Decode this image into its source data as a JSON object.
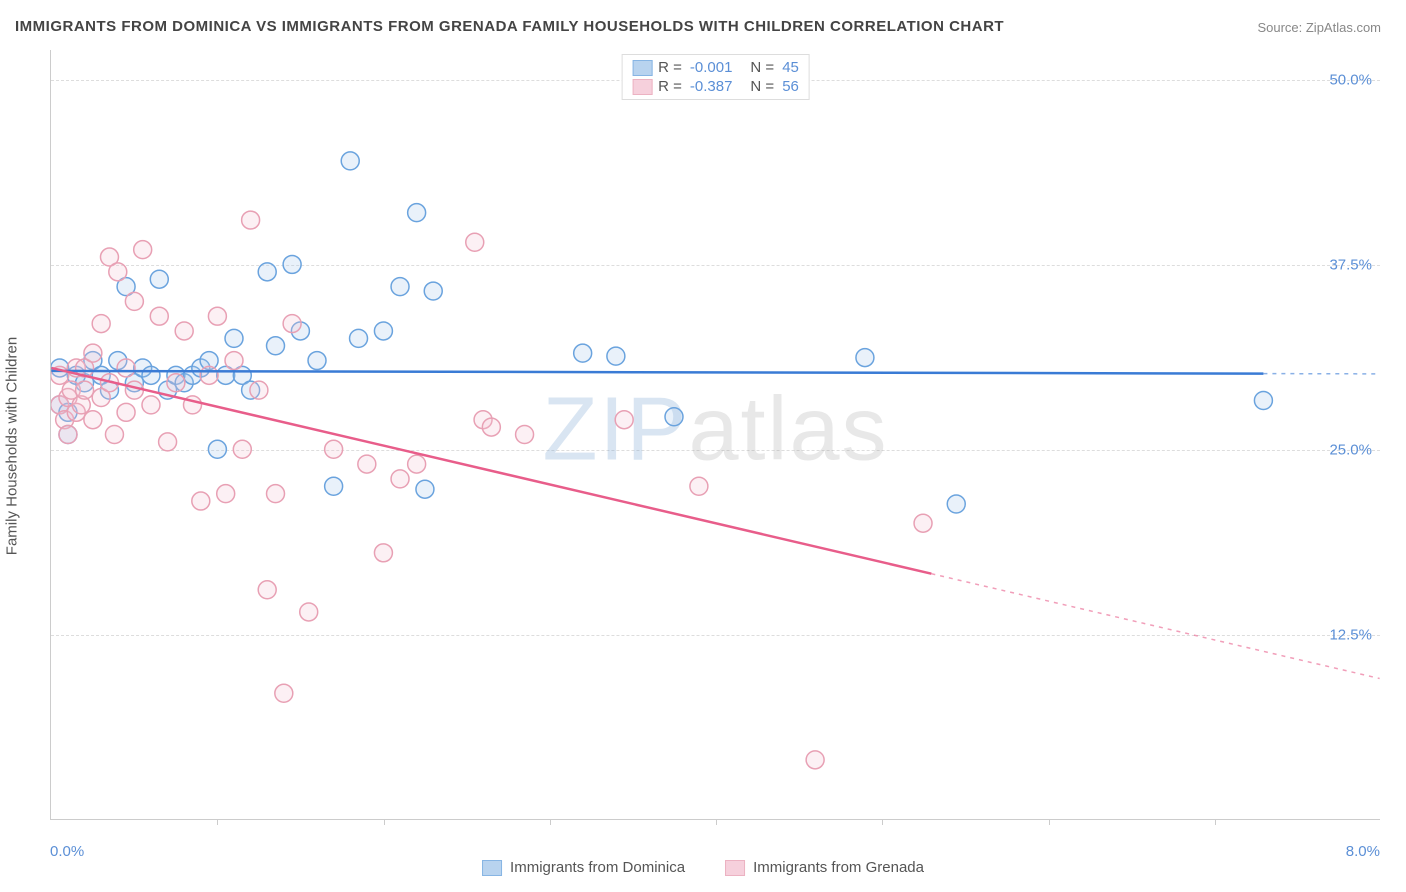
{
  "title": "IMMIGRANTS FROM DOMINICA VS IMMIGRANTS FROM GRENADA FAMILY HOUSEHOLDS WITH CHILDREN CORRELATION CHART",
  "title_fontsize": 15,
  "source": "Source: ZipAtlas.com",
  "watermark": "ZIPatlas",
  "ylabel": "Family Households with Children",
  "chart": {
    "type": "scatter",
    "background_color": "#ffffff",
    "grid_color": "#dddddd",
    "axis_color": "#cccccc",
    "tick_label_color": "#5b8fd6",
    "xlim": [
      0.0,
      8.0
    ],
    "ylim": [
      0.0,
      52.0
    ],
    "yticks": [
      12.5,
      25.0,
      37.5,
      50.0
    ],
    "ytick_labels": [
      "12.5%",
      "25.0%",
      "37.5%",
      "50.0%"
    ],
    "xtick_marks": [
      1.0,
      2.0,
      3.0,
      4.0,
      5.0,
      6.0,
      7.0
    ],
    "x_start_label": "0.0%",
    "x_end_label": "8.0%",
    "marker_radius": 9,
    "marker_stroke_width": 1.5,
    "marker_fill_opacity": 0.25,
    "trendline_width": 2.5
  },
  "series": [
    {
      "name": "Immigrants from Dominica",
      "color_stroke": "#6aa3de",
      "color_fill": "#a7c9ec",
      "trend_color": "#3a7bd5",
      "R": "-0.001",
      "N": "45",
      "trend": {
        "x1": 0.0,
        "y1": 30.3,
        "x2": 8.0,
        "y2": 30.1,
        "dash_from_x": 7.3
      },
      "points": [
        [
          0.05,
          30.5
        ],
        [
          0.05,
          28.0
        ],
        [
          0.1,
          27.5
        ],
        [
          0.1,
          26.0
        ],
        [
          0.15,
          30.0
        ],
        [
          0.2,
          29.5
        ],
        [
          0.25,
          31.0
        ],
        [
          0.3,
          30.0
        ],
        [
          0.35,
          29.0
        ],
        [
          0.4,
          31.0
        ],
        [
          0.45,
          36.0
        ],
        [
          0.5,
          29.5
        ],
        [
          0.55,
          30.5
        ],
        [
          0.6,
          30.0
        ],
        [
          0.65,
          36.5
        ],
        [
          0.7,
          29.0
        ],
        [
          0.75,
          30.0
        ],
        [
          0.8,
          29.5
        ],
        [
          0.85,
          30.0
        ],
        [
          0.9,
          30.5
        ],
        [
          0.95,
          31.0
        ],
        [
          1.0,
          25.0
        ],
        [
          1.05,
          30.0
        ],
        [
          1.1,
          32.5
        ],
        [
          1.15,
          30.0
        ],
        [
          1.2,
          29.0
        ],
        [
          1.3,
          37.0
        ],
        [
          1.35,
          32.0
        ],
        [
          1.45,
          37.5
        ],
        [
          1.5,
          33.0
        ],
        [
          1.6,
          31.0
        ],
        [
          1.7,
          22.5
        ],
        [
          1.8,
          44.5
        ],
        [
          1.85,
          32.5
        ],
        [
          2.0,
          33.0
        ],
        [
          2.1,
          36.0
        ],
        [
          2.2,
          41.0
        ],
        [
          2.25,
          22.3
        ],
        [
          2.3,
          35.7
        ],
        [
          3.2,
          31.5
        ],
        [
          3.4,
          31.3
        ],
        [
          3.75,
          27.2
        ],
        [
          4.9,
          31.2
        ],
        [
          5.45,
          21.3
        ],
        [
          7.3,
          28.3
        ]
      ]
    },
    {
      "name": "Immigrants from Grenada",
      "color_stroke": "#e8a0b4",
      "color_fill": "#f4c5d4",
      "trend_color": "#e85d8a",
      "R": "-0.387",
      "N": "56",
      "trend": {
        "x1": 0.0,
        "y1": 30.5,
        "x2": 8.0,
        "y2": 9.5,
        "dash_from_x": 5.3
      },
      "points": [
        [
          0.05,
          30.0
        ],
        [
          0.05,
          28.0
        ],
        [
          0.08,
          27.0
        ],
        [
          0.1,
          28.5
        ],
        [
          0.1,
          26.0
        ],
        [
          0.12,
          29.0
        ],
        [
          0.15,
          27.5
        ],
        [
          0.15,
          30.5
        ],
        [
          0.18,
          28.0
        ],
        [
          0.2,
          29.0
        ],
        [
          0.2,
          30.5
        ],
        [
          0.25,
          31.5
        ],
        [
          0.25,
          27.0
        ],
        [
          0.3,
          33.5
        ],
        [
          0.3,
          28.5
        ],
        [
          0.35,
          38.0
        ],
        [
          0.35,
          29.5
        ],
        [
          0.38,
          26.0
        ],
        [
          0.4,
          37.0
        ],
        [
          0.45,
          30.5
        ],
        [
          0.45,
          27.5
        ],
        [
          0.5,
          35.0
        ],
        [
          0.5,
          29.0
        ],
        [
          0.55,
          38.5
        ],
        [
          0.6,
          28.0
        ],
        [
          0.65,
          34.0
        ],
        [
          0.7,
          25.5
        ],
        [
          0.75,
          29.5
        ],
        [
          0.8,
          33.0
        ],
        [
          0.85,
          28.0
        ],
        [
          0.9,
          21.5
        ],
        [
          0.95,
          30.0
        ],
        [
          1.0,
          34.0
        ],
        [
          1.05,
          22.0
        ],
        [
          1.1,
          31.0
        ],
        [
          1.15,
          25.0
        ],
        [
          1.2,
          40.5
        ],
        [
          1.25,
          29.0
        ],
        [
          1.3,
          15.5
        ],
        [
          1.35,
          22.0
        ],
        [
          1.4,
          8.5
        ],
        [
          1.45,
          33.5
        ],
        [
          1.55,
          14.0
        ],
        [
          1.7,
          25.0
        ],
        [
          1.9,
          24.0
        ],
        [
          2.0,
          18.0
        ],
        [
          2.1,
          23.0
        ],
        [
          2.2,
          24.0
        ],
        [
          2.55,
          39.0
        ],
        [
          2.6,
          27.0
        ],
        [
          2.65,
          26.5
        ],
        [
          2.85,
          26.0
        ],
        [
          3.45,
          27.0
        ],
        [
          3.9,
          22.5
        ],
        [
          4.6,
          4.0
        ],
        [
          5.25,
          20.0
        ]
      ]
    }
  ],
  "legend_bottom": [
    {
      "label": "Immigrants from Dominica",
      "stroke": "#6aa3de",
      "fill": "#a7c9ec"
    },
    {
      "label": "Immigrants from Grenada",
      "stroke": "#e8a0b4",
      "fill": "#f4c5d4"
    }
  ]
}
